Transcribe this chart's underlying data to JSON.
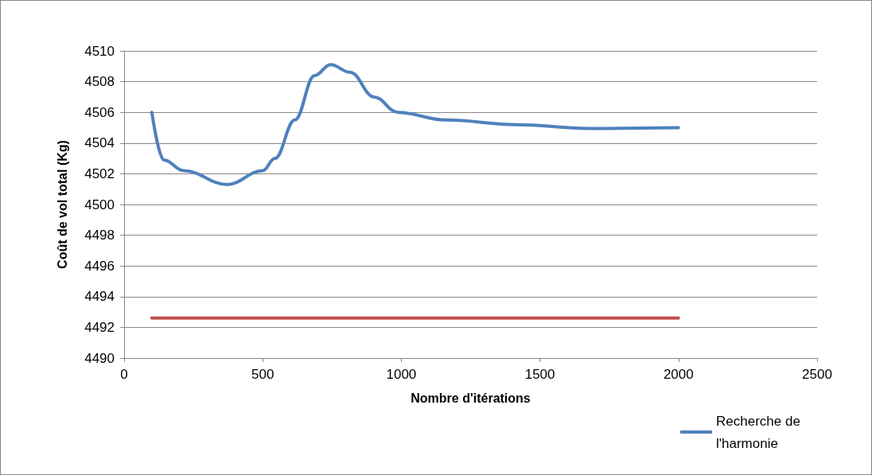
{
  "chart_data": {
    "type": "line",
    "xlabel": "Nombre d'itérations",
    "ylabel": "Coût de vol total (Kg)",
    "xlim": [
      0,
      2500
    ],
    "xticks": [
      0,
      500,
      1000,
      1500,
      2000,
      2500
    ],
    "ylim": [
      4490,
      4510
    ],
    "yticks": [
      4490,
      4492,
      4494,
      4496,
      4498,
      4500,
      4502,
      4504,
      4506,
      4508,
      4510
    ],
    "grid": "y",
    "legend": "bottom right",
    "marker": "none",
    "line_style": "solid",
    "series": [
      {
        "name": "Recherche de l'harmonie",
        "color": "#4f81bd",
        "x": [
          100,
          143,
          215,
          372,
          500,
          544,
          616,
          687,
          745,
          816,
          902,
          988,
          1160,
          1418,
          1675,
          2000
        ],
        "values": [
          4506,
          4502.9,
          4502.2,
          4501.3,
          4502.2,
          4503,
          4505.5,
          4508.4,
          4509.1,
          4508.6,
          4507,
          4506,
          4505.5,
          4505.2,
          4504.95,
          4505
        ]
      },
      {
        "color": "#c0504d",
        "x": [
          100,
          2000
        ],
        "values": [
          4492.6,
          4492.6
        ]
      }
    ]
  }
}
